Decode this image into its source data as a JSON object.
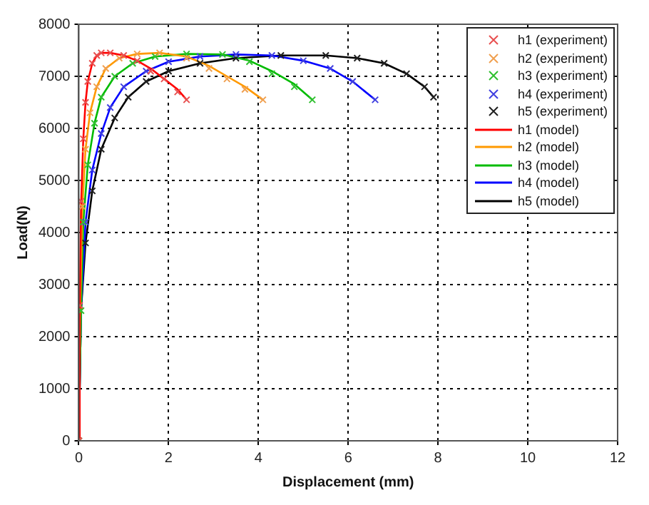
{
  "chart_data": {
    "type": "line",
    "xlabel": "Displacement (mm)",
    "ylabel": "Load(N)",
    "xlim": [
      0,
      12
    ],
    "xticks": [
      0,
      2,
      4,
      6,
      8,
      10,
      12
    ],
    "ylim": [
      0,
      8000
    ],
    "yticks": [
      0,
      1000,
      2000,
      3000,
      4000,
      5000,
      6000,
      7000,
      8000
    ],
    "grid": true,
    "legend": "top right",
    "line_style": "solid",
    "series": [
      {
        "name": "h1 (experiment)",
        "type": "scatter",
        "marker": "cross",
        "color": "#e85050",
        "x": [
          0,
          0.02,
          0.05,
          0.1,
          0.15,
          0.2,
          0.3,
          0.4,
          0.5,
          0.7,
          1.0,
          1.3,
          1.6,
          1.9,
          2.2,
          2.4
        ],
        "values": [
          0,
          2600,
          4600,
          5800,
          6500,
          6900,
          7250,
          7400,
          7450,
          7450,
          7400,
          7300,
          7100,
          6950,
          6700,
          6550
        ]
      },
      {
        "name": "h2 (experiment)",
        "type": "scatter",
        "marker": "cross",
        "color": "#f0a050",
        "x": [
          0,
          0.08,
          0.15,
          0.25,
          0.4,
          0.6,
          0.9,
          1.3,
          1.8,
          2.4,
          2.9,
          3.3,
          3.7,
          4.1
        ],
        "values": [
          0,
          4500,
          5600,
          6300,
          6800,
          7150,
          7350,
          7430,
          7450,
          7350,
          7150,
          6950,
          6750,
          6550
        ]
      },
      {
        "name": "h3 (experiment)",
        "type": "scatter",
        "marker": "cross",
        "color": "#30c030",
        "x": [
          0,
          0.05,
          0.1,
          0.2,
          0.35,
          0.5,
          0.8,
          1.2,
          1.7,
          2.4,
          3.2,
          3.8,
          4.3,
          4.8,
          5.2
        ],
        "values": [
          0,
          2500,
          4200,
          5300,
          6100,
          6600,
          7000,
          7250,
          7380,
          7430,
          7420,
          7280,
          7050,
          6800,
          6550
        ]
      },
      {
        "name": "h4 (experiment)",
        "type": "scatter",
        "marker": "cross",
        "color": "#4040e0",
        "x": [
          0,
          0.15,
          0.3,
          0.5,
          0.7,
          1.0,
          1.5,
          2.0,
          2.7,
          3.5,
          4.3,
          5.0,
          5.6,
          6.1,
          6.6
        ],
        "values": [
          0,
          4200,
          5200,
          5900,
          6400,
          6800,
          7100,
          7280,
          7380,
          7420,
          7400,
          7300,
          7150,
          6900,
          6550
        ]
      },
      {
        "name": "h5 (experiment)",
        "type": "scatter",
        "marker": "cross",
        "color": "#202020",
        "x": [
          0,
          0.15,
          0.3,
          0.5,
          0.8,
          1.1,
          1.5,
          2.0,
          2.7,
          3.5,
          4.5,
          5.5,
          6.2,
          6.8,
          7.3,
          7.7,
          7.9
        ],
        "values": [
          0,
          3800,
          4800,
          5600,
          6200,
          6600,
          6900,
          7100,
          7250,
          7350,
          7400,
          7400,
          7350,
          7250,
          7050,
          6800,
          6600
        ]
      },
      {
        "name": "h1 (model)",
        "marker": "none",
        "color": "#ff0000",
        "x": [
          0,
          0.02,
          0.05,
          0.1,
          0.15,
          0.2,
          0.3,
          0.4,
          0.5,
          0.7,
          1.0,
          1.3,
          1.6,
          1.9,
          2.2,
          2.4
        ],
        "values": [
          0,
          2500,
          4500,
          5800,
          6500,
          6900,
          7250,
          7400,
          7450,
          7450,
          7400,
          7300,
          7150,
          6950,
          6750,
          6550
        ]
      },
      {
        "name": "h2 (model)",
        "marker": "none",
        "color": "#ff9900",
        "x": [
          0,
          0.03,
          0.08,
          0.15,
          0.25,
          0.4,
          0.6,
          0.9,
          1.3,
          1.8,
          2.4,
          2.9,
          3.3,
          3.7,
          4.1
        ],
        "values": [
          0,
          2500,
          4500,
          5600,
          6300,
          6800,
          7150,
          7350,
          7430,
          7450,
          7380,
          7200,
          7000,
          6800,
          6550
        ]
      },
      {
        "name": "h3 (model)",
        "marker": "none",
        "color": "#00bb00",
        "x": [
          0,
          0.05,
          0.1,
          0.2,
          0.35,
          0.5,
          0.8,
          1.2,
          1.7,
          2.4,
          3.2,
          3.8,
          4.3,
          4.8,
          5.2
        ],
        "values": [
          0,
          2500,
          4200,
          5300,
          6100,
          6600,
          7000,
          7250,
          7380,
          7430,
          7420,
          7300,
          7100,
          6850,
          6550
        ]
      },
      {
        "name": "h4 (model)",
        "marker": "none",
        "color": "#0000ff",
        "x": [
          0,
          0.05,
          0.15,
          0.3,
          0.5,
          0.7,
          1.0,
          1.5,
          2.0,
          2.7,
          3.5,
          4.3,
          5.0,
          5.6,
          6.1,
          6.6
        ],
        "values": [
          0,
          2500,
          4200,
          5200,
          5900,
          6400,
          6800,
          7100,
          7280,
          7380,
          7420,
          7400,
          7300,
          7150,
          6900,
          6550
        ]
      },
      {
        "name": "h5 (model)",
        "marker": "none",
        "color": "#000000",
        "x": [
          0,
          0.05,
          0.15,
          0.3,
          0.5,
          0.8,
          1.1,
          1.5,
          2.0,
          2.7,
          3.5,
          4.5,
          5.5,
          6.2,
          6.8,
          7.3,
          7.7,
          7.9
        ],
        "values": [
          0,
          2500,
          3800,
          4800,
          5600,
          6200,
          6600,
          6900,
          7100,
          7250,
          7350,
          7400,
          7400,
          7350,
          7250,
          7050,
          6800,
          6600
        ]
      }
    ]
  }
}
